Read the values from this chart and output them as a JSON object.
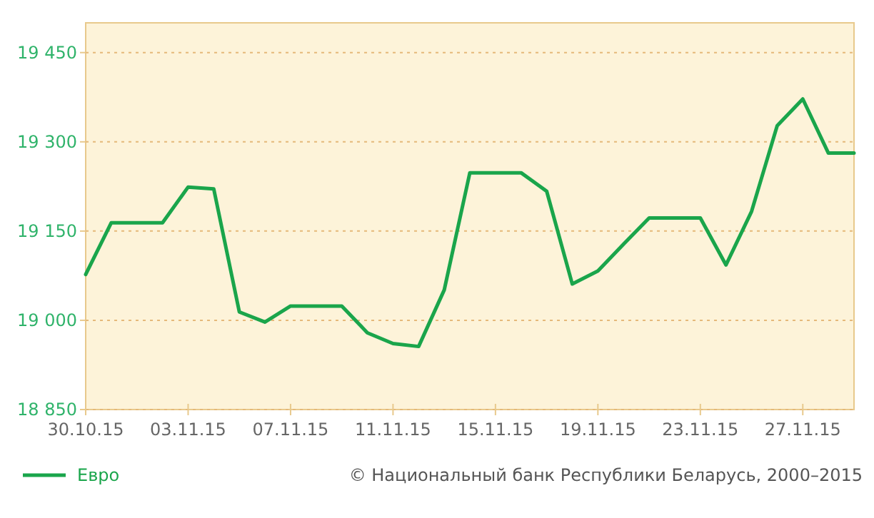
{
  "chart_data": {
    "type": "line",
    "x": [
      "2015-10-30",
      "2015-10-31",
      "2015-11-01",
      "2015-11-02",
      "2015-11-03",
      "2015-11-04",
      "2015-11-05",
      "2015-11-06",
      "2015-11-07",
      "2015-11-08",
      "2015-11-09",
      "2015-11-10",
      "2015-11-11",
      "2015-11-12",
      "2015-11-13",
      "2015-11-14",
      "2015-11-15",
      "2015-11-16",
      "2015-11-17",
      "2015-11-18",
      "2015-11-19",
      "2015-11-20",
      "2015-11-21",
      "2015-11-22",
      "2015-11-23",
      "2015-11-24",
      "2015-11-25",
      "2015-11-26",
      "2015-11-27",
      "2015-11-28",
      "2015-11-29"
    ],
    "series": [
      {
        "name": "Евро",
        "color": "#1aa54b",
        "values": [
          19077,
          19164,
          19164,
          19164,
          19224,
          19221,
          19014,
          18997,
          19024,
          19024,
          19024,
          18979,
          18961,
          18956,
          19051,
          19248,
          19248,
          19248,
          19217,
          19061,
          19083,
          19128,
          19172,
          19172,
          19172,
          19093,
          19183,
          19327,
          19372,
          19281,
          19281
        ]
      }
    ],
    "xlim": [
      "2015-10-30",
      "2015-11-29"
    ],
    "xticks": [
      {
        "value": "2015-10-30",
        "label": "30.10.15"
      },
      {
        "value": "2015-11-03",
        "label": "03.11.15"
      },
      {
        "value": "2015-11-07",
        "label": "07.11.15"
      },
      {
        "value": "2015-11-11",
        "label": "11.11.15"
      },
      {
        "value": "2015-11-15",
        "label": "15.11.15"
      },
      {
        "value": "2015-11-19",
        "label": "19.11.15"
      },
      {
        "value": "2015-11-23",
        "label": "23.11.15"
      },
      {
        "value": "2015-11-27",
        "label": "27.11.15"
      }
    ],
    "ylim": [
      18850,
      19500
    ],
    "yticks": [
      {
        "value": 18850,
        "label": "18 850"
      },
      {
        "value": 19000,
        "label": "19 000"
      },
      {
        "value": 19150,
        "label": "19 150"
      },
      {
        "value": 19300,
        "label": "19 300"
      },
      {
        "value": 19450,
        "label": "19 450"
      }
    ],
    "grid": "y",
    "legend": "bottom left",
    "marker": "none",
    "line_style": "solid",
    "annotations": [
      "© Национальный банк Республики Беларусь, 2000–2015"
    ]
  }
}
